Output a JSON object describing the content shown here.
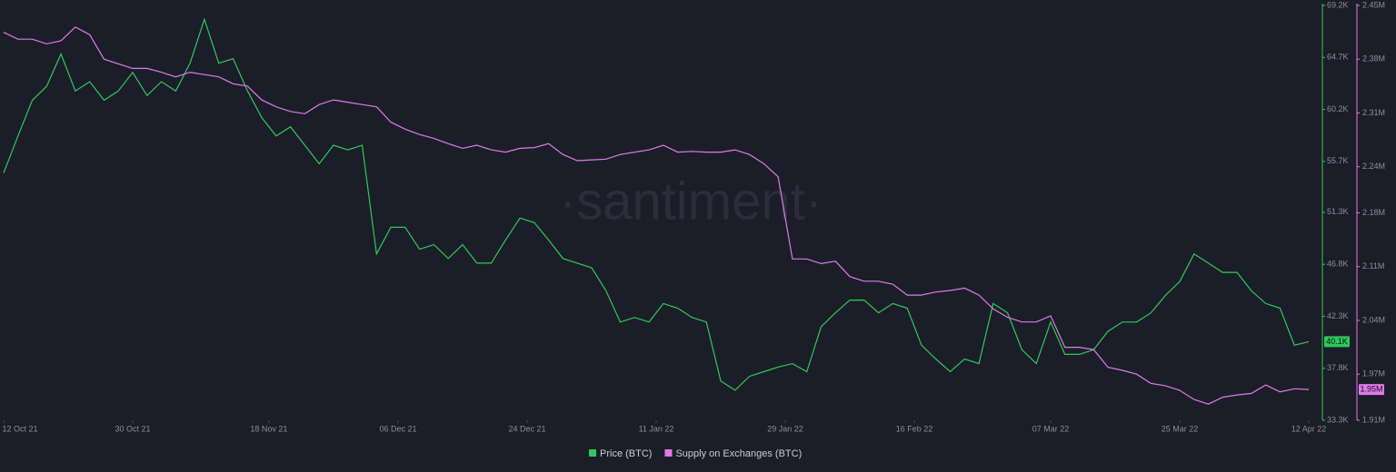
{
  "chart_data": {
    "type": "line",
    "watermark": "·santiment·",
    "x": [
      "12 Oct 21",
      "14 Oct 21",
      "16 Oct 21",
      "18 Oct 21",
      "20 Oct 21",
      "22 Oct 21",
      "24 Oct 21",
      "26 Oct 21",
      "28 Oct 21",
      "30 Oct 21",
      "01 Nov 21",
      "03 Nov 21",
      "05 Nov 21",
      "07 Nov 21",
      "09 Nov 21",
      "11 Nov 21",
      "13 Nov 21",
      "15 Nov 21",
      "17 Nov 21",
      "19 Nov 21",
      "21 Nov 21",
      "23 Nov 21",
      "25 Nov 21",
      "27 Nov 21",
      "29 Nov 21",
      "01 Dec 21",
      "03 Dec 21",
      "05 Dec 21",
      "07 Dec 21",
      "09 Dec 21",
      "11 Dec 21",
      "13 Dec 21",
      "15 Dec 21",
      "17 Dec 21",
      "19 Dec 21",
      "21 Dec 21",
      "23 Dec 21",
      "25 Dec 21",
      "27 Dec 21",
      "29 Dec 21",
      "31 Dec 21",
      "02 Jan 22",
      "04 Jan 22",
      "06 Jan 22",
      "08 Jan 22",
      "10 Jan 22",
      "12 Jan 22",
      "14 Jan 22",
      "16 Jan 22",
      "18 Jan 22",
      "20 Jan 22",
      "22 Jan 22",
      "24 Jan 22",
      "26 Jan 22",
      "28 Jan 22",
      "30 Jan 22",
      "01 Feb 22",
      "03 Feb 22",
      "05 Feb 22",
      "07 Feb 22",
      "09 Feb 22",
      "11 Feb 22",
      "13 Feb 22",
      "15 Feb 22",
      "17 Feb 22",
      "19 Feb 22",
      "21 Feb 22",
      "23 Feb 22",
      "25 Feb 22",
      "27 Feb 22",
      "01 Mar 22",
      "03 Mar 22",
      "05 Mar 22",
      "07 Mar 22",
      "09 Mar 22",
      "11 Mar 22",
      "13 Mar 22",
      "15 Mar 22",
      "17 Mar 22",
      "19 Mar 22",
      "21 Mar 22",
      "23 Mar 22",
      "25 Mar 22",
      "27 Mar 22",
      "29 Mar 22",
      "31 Mar 22",
      "02 Apr 22",
      "04 Apr 22",
      "06 Apr 22",
      "08 Apr 22",
      "10 Apr 22",
      "12 Apr 22"
    ],
    "xlim": [
      "12 Oct 21",
      "12 Apr 22"
    ],
    "xticks": [
      "12 Oct 21",
      "30 Oct 21",
      "18 Nov 21",
      "06 Dec 21",
      "24 Dec 21",
      "11 Jan 22",
      "29 Jan 22",
      "16 Feb 22",
      "07 Mar 22",
      "25 Mar 22",
      "12 Apr 22"
    ],
    "ylim": [
      33300,
      69200
    ],
    "yticks": [
      {
        "value": 33300,
        "label": "33.3K"
      },
      {
        "value": 37800,
        "label": "37.8K"
      },
      {
        "value": 42300,
        "label": "42.3K"
      },
      {
        "value": 46800,
        "label": "46.8K"
      },
      {
        "value": 51300,
        "label": "51.3K"
      },
      {
        "value": 55700,
        "label": "55.7K"
      },
      {
        "value": 60200,
        "label": "60.2K"
      },
      {
        "value": 64700,
        "label": "64.7K"
      },
      {
        "value": 69200,
        "label": "69.2K"
      }
    ],
    "y2lim": [
      1910000,
      2450000
    ],
    "y2ticks": [
      {
        "value": 1910000,
        "label": "1.91M"
      },
      {
        "value": 1970000,
        "label": "1.97M"
      },
      {
        "value": 2040000,
        "label": "2.04M"
      },
      {
        "value": 2110000,
        "label": "2.11M"
      },
      {
        "value": 2180000,
        "label": "2.18M"
      },
      {
        "value": 2240000,
        "label": "2.24M"
      },
      {
        "value": 2310000,
        "label": "2.31M"
      },
      {
        "value": 2380000,
        "label": "2.38M"
      },
      {
        "value": 2450000,
        "label": "2.45M"
      }
    ],
    "series": [
      {
        "name": "Price (BTC)",
        "color": "#2fc85a",
        "end_label": "40.1K",
        "values": [
          54700,
          57900,
          61000,
          62200,
          65000,
          61800,
          62600,
          61000,
          61800,
          63400,
          61400,
          62600,
          61800,
          64200,
          68000,
          64200,
          64600,
          61800,
          59500,
          57900,
          58700,
          57100,
          55500,
          57100,
          56700,
          57100,
          47700,
          50000,
          50000,
          48100,
          48500,
          47300,
          48500,
          46900,
          46900,
          48900,
          50800,
          50400,
          48900,
          47300,
          46900,
          46500,
          44500,
          41800,
          42200,
          41800,
          43400,
          43000,
          42200,
          41800,
          36700,
          35900,
          37100,
          37500,
          37900,
          38200,
          37500,
          41400,
          42600,
          43700,
          43700,
          42600,
          43400,
          43000,
          39800,
          38600,
          37500,
          38600,
          38200,
          43400,
          42600,
          39400,
          38200,
          41800,
          39000,
          39000,
          39400,
          41000,
          41800,
          41800,
          42600,
          44100,
          45300,
          47700,
          46900,
          46100,
          46100,
          44500,
          43400,
          43000,
          39800,
          40100
        ]
      },
      {
        "name": "Supply on Exchanges (BTC)",
        "color": "#e07ae8",
        "axis": "y2",
        "end_label": "1.95M",
        "values": [
          2415000,
          2406000,
          2406000,
          2400000,
          2404000,
          2422000,
          2412000,
          2380000,
          2374000,
          2368000,
          2368000,
          2363000,
          2357000,
          2363000,
          2360000,
          2357000,
          2348000,
          2345000,
          2327000,
          2318000,
          2312000,
          2309000,
          2321000,
          2327000,
          2324000,
          2321000,
          2318000,
          2298000,
          2289000,
          2282000,
          2277000,
          2270000,
          2264000,
          2268000,
          2262000,
          2259000,
          2264000,
          2265000,
          2270000,
          2256000,
          2248000,
          2249000,
          2250000,
          2256000,
          2259000,
          2262000,
          2268000,
          2259000,
          2260000,
          2259000,
          2259000,
          2262000,
          2256000,
          2244000,
          2227000,
          2120000,
          2120000,
          2114000,
          2117000,
          2097000,
          2091000,
          2091000,
          2087000,
          2073000,
          2073000,
          2077000,
          2079000,
          2082000,
          2073000,
          2055000,
          2044000,
          2038000,
          2038000,
          2046000,
          2005000,
          2005000,
          2002000,
          1979000,
          1975000,
          1970000,
          1958000,
          1955000,
          1949000,
          1937000,
          1931000,
          1940000,
          1943000,
          1945000,
          1956000,
          1947000,
          1951000,
          1950000
        ]
      }
    ]
  }
}
